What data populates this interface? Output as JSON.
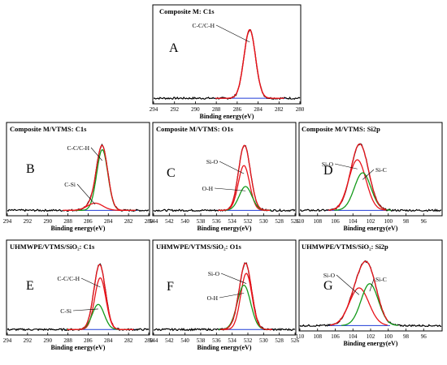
{
  "colors": {
    "total": "#e8141b",
    "component": "#139a1a",
    "baseline": "#1f3bd6",
    "raw": "#000000"
  },
  "chart_data": [
    {
      "id": "A",
      "type": "line",
      "panel_letter": "A",
      "title": "Composite M: C1s",
      "xlabel": "Binding energy(eV)",
      "xlim": [
        294,
        280
      ],
      "x_ticks": [
        294,
        292,
        290,
        288,
        286,
        284,
        282,
        280
      ],
      "peaks": [
        {
          "label": "C-C/C-H",
          "center": 284.8,
          "fwhm": 1.3,
          "height": 0.88,
          "color": "red"
        }
      ],
      "total_height": 0.88,
      "baseline": 0.03
    },
    {
      "id": "B",
      "type": "line",
      "panel_letter": "B",
      "title": "Composite M/VTMS: C1s",
      "xlabel": "Binding energy(eV)",
      "xlim": [
        294,
        280
      ],
      "x_ticks": [
        294,
        292,
        290,
        288,
        286,
        284,
        282,
        280
      ],
      "peaks": [
        {
          "label": "C-C/C-H",
          "center": 284.6,
          "fwhm": 1.3,
          "height": 0.84,
          "color": "green"
        },
        {
          "label": "C-Si",
          "center": 285.3,
          "fwhm": 1.8,
          "height": 0.1,
          "color": "red"
        }
      ],
      "total_height": 0.9,
      "baseline": 0.03
    },
    {
      "id": "C",
      "type": "line",
      "panel_letter": "C",
      "title": "Composite M/VTMS: O1s",
      "xlabel": "Binding energy(eV)",
      "xlim": [
        544,
        526
      ],
      "x_ticks": [
        544,
        542,
        540,
        538,
        536,
        534,
        532,
        530,
        528,
        526
      ],
      "peaks": [
        {
          "label": "Si-O",
          "center": 532.5,
          "fwhm": 1.7,
          "height": 0.62,
          "color": "red"
        },
        {
          "label": "O-H",
          "center": 532.3,
          "fwhm": 1.9,
          "height": 0.33,
          "color": "green"
        }
      ],
      "total_height": 0.9,
      "baseline": 0.03
    },
    {
      "id": "D",
      "type": "line",
      "panel_letter": "D",
      "title": "Composite M/VTMS: Si2p",
      "xlabel": "Binding energy(eV)",
      "xlim": [
        110,
        94
      ],
      "x_ticks": [
        110,
        108,
        106,
        104,
        102,
        100,
        98,
        96
      ],
      "peaks": [
        {
          "label": "Si-O",
          "center": 103.5,
          "fwhm": 2.3,
          "height": 0.7,
          "color": "red"
        },
        {
          "label": "Si-C",
          "center": 102.9,
          "fwhm": 2.2,
          "height": 0.52,
          "color": "green"
        }
      ],
      "total_height": 0.92,
      "baseline": 0.03
    },
    {
      "id": "E",
      "type": "line",
      "panel_letter": "E",
      "title": "UHMWPE/VTMS/SiO₂: C1s",
      "xlabel": "Binding energy(eV)",
      "xlim": [
        294,
        280
      ],
      "x_ticks": [
        294,
        292,
        290,
        288,
        286,
        284,
        282,
        280
      ],
      "peaks": [
        {
          "label": "C-C/C-H",
          "center": 284.8,
          "fwhm": 1.3,
          "height": 0.7,
          "color": "red"
        },
        {
          "label": "C-Si",
          "center": 285.0,
          "fwhm": 1.4,
          "height": 0.34,
          "color": "green"
        }
      ],
      "total_height": 0.88,
      "baseline": 0.03
    },
    {
      "id": "F",
      "type": "line",
      "panel_letter": "F",
      "title": "UHMWPE/VTMS/SiO₂: O1s",
      "xlabel": "Binding energy(eV)",
      "xlim": [
        544,
        526
      ],
      "x_ticks": [
        544,
        542,
        540,
        538,
        536,
        534,
        532,
        530,
        528,
        526
      ],
      "peaks": [
        {
          "label": "Si-O",
          "center": 532.2,
          "fwhm": 1.7,
          "height": 0.76,
          "color": "red"
        },
        {
          "label": "O-H",
          "center": 532.5,
          "fwhm": 2.0,
          "height": 0.6,
          "color": "green"
        }
      ],
      "total_height": 0.9,
      "baseline": 0.03
    },
    {
      "id": "G",
      "type": "line",
      "panel_letter": "G",
      "title": "UHMWPE/VTMS/SiO₂: Si2p",
      "xlabel": "Binding energy(eV)",
      "xlim": [
        110,
        94
      ],
      "x_ticks": [
        110,
        108,
        106,
        104,
        102,
        100,
        98,
        96
      ],
      "peaks": [
        {
          "label": "Si-O",
          "center": 103.3,
          "fwhm": 2.6,
          "height": 0.54,
          "color": "red"
        },
        {
          "label": "Si-C",
          "center": 102.1,
          "fwhm": 2.3,
          "height": 0.6,
          "color": "green"
        }
      ],
      "total_height": 0.92,
      "baseline": 0.03
    }
  ]
}
